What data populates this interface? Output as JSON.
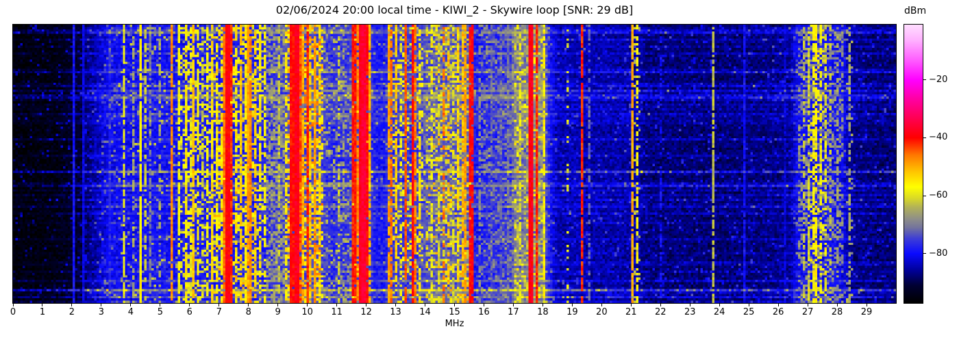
{
  "figure": {
    "title": "02/06/2024 20:00 local time - KIWI_2 - Skywire loop [SNR: 29 dB]",
    "station": "KIWI_2",
    "antenna": "Skywire loop",
    "snr_label": "SNR: 29 dB",
    "datetime_label": "02/06/2024 20:00 local time",
    "xlabel": "MHz",
    "colorbar_label": "dBm",
    "background": "#ffffff",
    "frame_color": "#000000"
  },
  "chart_data": {
    "type": "heatmap",
    "subtype": "radio-spectrogram-waterfall",
    "title": "02/06/2024 20:00 local time - KIWI_2 - Skywire loop [SNR: 29 dB]",
    "xlabel": "MHz",
    "x_range": [
      0,
      30
    ],
    "x_ticks": [
      0,
      1,
      2,
      3,
      4,
      5,
      6,
      7,
      8,
      9,
      10,
      11,
      12,
      13,
      14,
      15,
      16,
      17,
      18,
      19,
      20,
      21,
      22,
      23,
      24,
      25,
      26,
      27,
      28,
      29
    ],
    "colorbar": {
      "label": "dBm",
      "ticks": [
        -20,
        -40,
        -60,
        -80
      ],
      "range": [
        -97,
        -1
      ]
    },
    "grid": {
      "cols": 370,
      "rows": 120
    },
    "seed": 20240602,
    "colormap_stops": [
      [
        -97,
        "#000000"
      ],
      [
        -91,
        "#000033"
      ],
      [
        -86,
        "#000095"
      ],
      [
        -80,
        "#0a0aff"
      ],
      [
        -75,
        "#3c3cd8"
      ],
      [
        -71,
        "#74749c"
      ],
      [
        -68,
        "#8f8f88"
      ],
      [
        -64,
        "#b2b258"
      ],
      [
        -61,
        "#d8d828"
      ],
      [
        -57,
        "#ffff00"
      ],
      [
        -52,
        "#ffc800"
      ],
      [
        -46,
        "#ff7800"
      ],
      [
        -40,
        "#ff0000"
      ],
      [
        -33,
        "#ff0055"
      ],
      [
        -26,
        "#ff00aa"
      ],
      [
        -20,
        "#ff00ff"
      ],
      [
        -13,
        "#ff5fff"
      ],
      [
        -6,
        "#ffb4ff"
      ],
      [
        -1,
        "#ffddff"
      ]
    ],
    "noise_floor_dbm_vs_mhz": [
      [
        0,
        -96
      ],
      [
        1.5,
        -95
      ],
      [
        2.2,
        -92
      ],
      [
        2.6,
        -87
      ],
      [
        3.0,
        -83
      ],
      [
        3.3,
        -80.5
      ],
      [
        5.5,
        -79.5
      ],
      [
        6.5,
        -78.5
      ],
      [
        8.5,
        -78
      ],
      [
        8.8,
        -76
      ],
      [
        9.4,
        -74.5
      ],
      [
        10.4,
        -74.5
      ],
      [
        10.8,
        -77
      ],
      [
        11.4,
        -76
      ],
      [
        11.6,
        -74.5
      ],
      [
        12.1,
        -75
      ],
      [
        12.3,
        -79
      ],
      [
        12.6,
        -79
      ],
      [
        12.8,
        -76.5
      ],
      [
        13.9,
        -75
      ],
      [
        14.1,
        -73.5
      ],
      [
        15.5,
        -73.5
      ],
      [
        15.7,
        -79
      ],
      [
        16.1,
        -77.5
      ],
      [
        16.9,
        -76
      ],
      [
        17.05,
        -71.5
      ],
      [
        18.0,
        -71
      ],
      [
        18.25,
        -80
      ],
      [
        18.5,
        -84.5
      ],
      [
        21.2,
        -85.5
      ],
      [
        21.6,
        -87.5
      ],
      [
        24.0,
        -88
      ],
      [
        26.4,
        -86.5
      ],
      [
        26.65,
        -80.5
      ],
      [
        27.5,
        -79.5
      ],
      [
        28.2,
        -81
      ],
      [
        28.45,
        -86.5
      ],
      [
        29.0,
        -87.5
      ],
      [
        30,
        -88
      ]
    ],
    "speckle_bands": {
      "columns": [
        "f_start_mhz",
        "f_end_mhz",
        "density",
        "level_dbm"
      ],
      "rows": [
        [
          2.9,
          3.6,
          0.06,
          -72
        ],
        [
          3.6,
          5.6,
          0.05,
          -64
        ],
        [
          5.6,
          8.6,
          0.22,
          -59
        ],
        [
          6.8,
          8.3,
          0.1,
          -52
        ],
        [
          8.6,
          9.25,
          0.45,
          -67
        ],
        [
          9.3,
          10.55,
          0.3,
          -56
        ],
        [
          9.3,
          10.55,
          0.12,
          -48
        ],
        [
          10.55,
          11.5,
          0.18,
          -66
        ],
        [
          11.5,
          12.15,
          0.25,
          -52
        ],
        [
          12.7,
          13.95,
          0.18,
          -58
        ],
        [
          14.0,
          15.6,
          0.25,
          -61
        ],
        [
          14.0,
          15.6,
          0.07,
          -52
        ],
        [
          15.9,
          17.0,
          0.25,
          -70
        ],
        [
          17.05,
          18.1,
          0.35,
          -65
        ],
        [
          17.05,
          18.1,
          0.12,
          -57
        ],
        [
          21.0,
          21.35,
          0.12,
          -63
        ],
        [
          26.65,
          28.2,
          0.35,
          -68
        ],
        [
          27.1,
          27.65,
          0.18,
          -57
        ],
        [
          28.3,
          28.55,
          0.12,
          -66
        ]
      ]
    },
    "signals": {
      "columns": [
        "freq_mhz",
        "level_dbm",
        "duty",
        "width_mhz"
      ],
      "rows": [
        [
          2.08,
          -79,
          1,
          0
        ],
        [
          2.42,
          -82,
          1,
          0
        ],
        [
          3.32,
          -78,
          1,
          0
        ],
        [
          3.81,
          -59,
          0.85,
          0
        ],
        [
          4.07,
          -66,
          0.5,
          0
        ],
        [
          4.34,
          -56,
          0.95,
          0
        ],
        [
          4.5,
          -62,
          0.6,
          0
        ],
        [
          4.68,
          -70,
          0.7,
          0
        ],
        [
          5.0,
          -65,
          0.45,
          0
        ],
        [
          5.42,
          -47,
          0.9,
          0
        ],
        [
          5.65,
          -58,
          0.7,
          0
        ],
        [
          5.86,
          -55,
          0.8,
          0
        ],
        [
          6.0,
          -60,
          0.6,
          0
        ],
        [
          6.1,
          -52,
          0.85,
          0
        ],
        [
          6.28,
          -57,
          0.7,
          0
        ],
        [
          6.45,
          -62,
          0.5,
          0
        ],
        [
          6.62,
          -58,
          0.65,
          0
        ],
        [
          6.8,
          -54,
          0.8,
          0
        ],
        [
          6.95,
          -58,
          0.65,
          0
        ],
        [
          7.1,
          -56,
          0.7,
          0
        ],
        [
          7.2,
          -46,
          0.9,
          0
        ],
        [
          7.3,
          -39,
          1,
          0.05
        ],
        [
          7.44,
          -42,
          0.95,
          0
        ],
        [
          7.56,
          -55,
          0.7,
          0
        ],
        [
          7.74,
          -52,
          0.8,
          0
        ],
        [
          7.9,
          -56,
          0.7,
          0
        ],
        [
          8.0,
          -49,
          0.85,
          0
        ],
        [
          8.1,
          -47,
          0.85,
          0
        ],
        [
          8.2,
          -53,
          0.7,
          0
        ],
        [
          8.37,
          -55,
          0.7,
          0
        ],
        [
          8.53,
          -57,
          0.6,
          0
        ],
        [
          9.0,
          -62,
          0.6,
          0
        ],
        [
          9.3,
          -55,
          0.7,
          0
        ],
        [
          9.42,
          -45,
          0.9,
          0
        ],
        [
          9.5,
          -40,
          0.95,
          0.04
        ],
        [
          9.58,
          -47,
          0.85,
          0
        ],
        [
          9.66,
          -38,
          1,
          0.05
        ],
        [
          9.76,
          -44,
          0.9,
          0
        ],
        [
          9.88,
          -50,
          0.8,
          0
        ],
        [
          10.0,
          -42,
          0.9,
          0
        ],
        [
          10.1,
          -52,
          0.75,
          0
        ],
        [
          10.25,
          -49,
          0.8,
          0
        ],
        [
          10.4,
          -55,
          0.7,
          0
        ],
        [
          11.05,
          -62,
          0.5,
          0
        ],
        [
          11.25,
          -66,
          0.4,
          0
        ],
        [
          11.6,
          -41,
          0.95,
          0.05
        ],
        [
          11.73,
          -47,
          0.85,
          0
        ],
        [
          11.85,
          -38,
          1,
          0.07
        ],
        [
          11.94,
          -36,
          1,
          0.07
        ],
        [
          12.02,
          -40,
          0.95,
          0.05
        ],
        [
          12.1,
          -50,
          0.8,
          0
        ],
        [
          12.77,
          -49,
          0.8,
          0
        ],
        [
          12.88,
          -46,
          0.85,
          0
        ],
        [
          13.02,
          -52,
          0.7,
          0
        ],
        [
          13.2,
          -58,
          0.5,
          0
        ],
        [
          13.37,
          -44,
          0.9,
          0
        ],
        [
          13.57,
          -40,
          0.95,
          0.05
        ],
        [
          13.7,
          -47,
          0.8,
          0
        ],
        [
          13.85,
          -55,
          0.6,
          0
        ],
        [
          14.22,
          -59,
          0.5,
          0
        ],
        [
          14.45,
          -61,
          0.5,
          0
        ],
        [
          14.63,
          -46,
          0.5,
          0
        ],
        [
          14.8,
          -51,
          0.45,
          0
        ],
        [
          14.95,
          -60,
          0.5,
          0
        ],
        [
          15.12,
          -54,
          0.7,
          0
        ],
        [
          15.25,
          -51,
          0.75,
          0
        ],
        [
          15.38,
          -49,
          0.8,
          0
        ],
        [
          15.55,
          -40,
          0.95,
          0.04
        ],
        [
          15.82,
          -68,
          0.5,
          0
        ],
        [
          16.25,
          -73,
          0.7,
          0
        ],
        [
          16.55,
          -73,
          0.7,
          0
        ],
        [
          16.85,
          -71,
          0.7,
          0
        ],
        [
          17.25,
          -60,
          0.5,
          0
        ],
        [
          17.58,
          -38,
          1,
          0.05
        ],
        [
          17.8,
          -42,
          0.95,
          0
        ],
        [
          18.05,
          -56,
          0.7,
          0
        ],
        [
          18.86,
          -60,
          0.3,
          0
        ],
        [
          19.37,
          -42,
          0.9,
          0
        ],
        [
          19.6,
          -72,
          0.5,
          0
        ],
        [
          21.05,
          -50,
          0.92,
          0.05
        ],
        [
          21.17,
          -57,
          0.6,
          0
        ],
        [
          22.0,
          -80,
          0.5,
          0
        ],
        [
          23.78,
          -63,
          0.8,
          0
        ],
        [
          24.85,
          -80,
          0.9,
          0
        ],
        [
          26.2,
          -82,
          0.8,
          0
        ],
        [
          26.9,
          -63,
          0.5,
          0
        ],
        [
          27.05,
          -61,
          0.55,
          0
        ],
        [
          27.2,
          -57,
          0.6,
          0
        ],
        [
          27.32,
          -56,
          0.6,
          0
        ],
        [
          27.45,
          -58,
          0.55,
          0
        ],
        [
          27.6,
          -61,
          0.5,
          0
        ],
        [
          27.8,
          -63,
          0.45,
          0
        ],
        [
          28.0,
          -65,
          0.4,
          0
        ],
        [
          28.45,
          -65,
          0.5,
          0
        ]
      ]
    },
    "burst_rows": {
      "strong": [
        {
          "t": 0.258,
          "boost": 9
        },
        {
          "t": 0.533,
          "boost": 12
        },
        {
          "t": 0.956,
          "boost": 14
        },
        {
          "t": 0.985,
          "boost": 8
        }
      ],
      "random": {
        "prob_strong": 0.1,
        "strong_min": 4.5,
        "strong_max": 8.5,
        "prob_weak": 0.32,
        "weak_min": 1.5,
        "weak_max": 4.0
      }
    }
  }
}
